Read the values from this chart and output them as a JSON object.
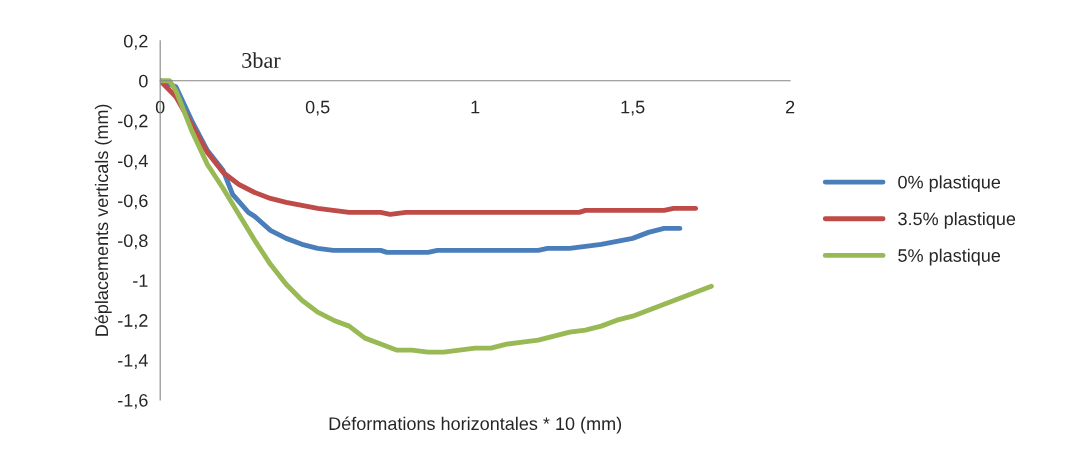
{
  "chart_data": {
    "type": "line",
    "title": "3bar",
    "xlabel": "Déformations horizontales * 10 (mm)",
    "ylabel": "Déplacements verticals (mm)",
    "xlim": [
      0,
      2
    ],
    "xticks": [
      {
        "value": 0,
        "label": "0"
      },
      {
        "value": 0.5,
        "label": "0,5"
      },
      {
        "value": 1,
        "label": "1"
      },
      {
        "value": 1.5,
        "label": "1,5"
      },
      {
        "value": 2,
        "label": "2"
      }
    ],
    "ylim": [
      -1.6,
      0.2
    ],
    "yticks": [
      {
        "value": -1.6,
        "label": "-1,6"
      },
      {
        "value": -1.4,
        "label": "-1,4"
      },
      {
        "value": -1.2,
        "label": "-1,2"
      },
      {
        "value": -1,
        "label": "-1"
      },
      {
        "value": -0.8,
        "label": "-0,8"
      },
      {
        "value": -0.6,
        "label": "-0,6"
      },
      {
        "value": -0.4,
        "label": "-0,4"
      },
      {
        "value": -0.2,
        "label": "-0,2"
      },
      {
        "value": 0,
        "label": "0"
      },
      {
        "value": 0.2,
        "label": "0,2"
      }
    ],
    "grid": false,
    "legend": "right",
    "marker": "none",
    "line_style": "solid",
    "series": [
      {
        "name": "0% plastique",
        "color": "#4a7ebb",
        "x": [
          0,
          0.05,
          0.1,
          0.15,
          0.2,
          0.23,
          0.28,
          0.3,
          0.35,
          0.4,
          0.45,
          0.5,
          0.55,
          0.7,
          0.72,
          0.85,
          0.88,
          1.2,
          1.23,
          1.3,
          1.4,
          1.5,
          1.55,
          1.6,
          1.65
        ],
        "values": [
          0,
          -0.03,
          -0.2,
          -0.35,
          -0.45,
          -0.57,
          -0.66,
          -0.68,
          -0.75,
          -0.79,
          -0.82,
          -0.84,
          -0.85,
          -0.85,
          -0.86,
          -0.86,
          -0.85,
          -0.85,
          -0.84,
          -0.84,
          -0.82,
          -0.79,
          -0.76,
          -0.74,
          -0.74
        ]
      },
      {
        "name": "3.5% plastique",
        "color": "#be4b48",
        "x": [
          0,
          0.05,
          0.1,
          0.15,
          0.2,
          0.25,
          0.3,
          0.35,
          0.4,
          0.5,
          0.55,
          0.6,
          0.7,
          0.73,
          0.78,
          1.33,
          1.35,
          1.6,
          1.63,
          1.7
        ],
        "values": [
          0,
          -0.08,
          -0.22,
          -0.36,
          -0.46,
          -0.52,
          -0.56,
          -0.59,
          -0.61,
          -0.64,
          -0.65,
          -0.66,
          -0.66,
          -0.67,
          -0.66,
          -0.66,
          -0.65,
          -0.65,
          -0.64,
          -0.64
        ]
      },
      {
        "name": "5% plastique",
        "color": "#98b954",
        "x": [
          0,
          0.03,
          0.05,
          0.1,
          0.15,
          0.2,
          0.25,
          0.3,
          0.35,
          0.4,
          0.45,
          0.5,
          0.55,
          0.6,
          0.65,
          0.7,
          0.75,
          0.8,
          0.85,
          0.9,
          0.95,
          1.0,
          1.05,
          1.1,
          1.15,
          1.2,
          1.25,
          1.3,
          1.35,
          1.4,
          1.45,
          1.5,
          1.55,
          1.6,
          1.65,
          1.7,
          1.75
        ],
        "values": [
          0,
          0,
          -0.05,
          -0.25,
          -0.42,
          -0.54,
          -0.67,
          -0.8,
          -0.92,
          -1.02,
          -1.1,
          -1.16,
          -1.2,
          -1.23,
          -1.29,
          -1.32,
          -1.35,
          -1.35,
          -1.36,
          -1.36,
          -1.35,
          -1.34,
          -1.34,
          -1.32,
          -1.31,
          -1.3,
          -1.28,
          -1.26,
          -1.25,
          -1.23,
          -1.2,
          -1.18,
          -1.15,
          -1.12,
          -1.09,
          -1.06,
          -1.03
        ]
      }
    ]
  }
}
